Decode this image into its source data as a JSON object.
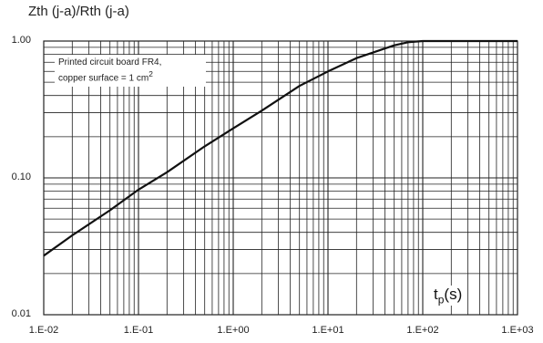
{
  "chart_data": {
    "type": "line",
    "title": "Zth (j-a)/Rth (j-a)",
    "annotation": {
      "line1": "Printed circuit board FR4,",
      "line2_text": "copper surface = 1 cm",
      "line2_sup": "2"
    },
    "x_label": {
      "main": "t",
      "sub": "p",
      "unit": "(s)"
    },
    "x_scale": "log",
    "y_scale": "log",
    "xlim": [
      0.01,
      1000
    ],
    "ylim": [
      0.01,
      1.0
    ],
    "x_tick_labels": [
      "1.E-02",
      "1.E-01",
      "1.E+00",
      "1.E+01",
      "1.E+02",
      "1.E+03"
    ],
    "y_tick_labels": [
      "0.01",
      "0.10",
      "1.00"
    ],
    "grid": true,
    "series": [
      {
        "x": [
          0.01,
          0.02,
          0.05,
          0.1,
          0.2,
          0.5,
          1,
          2,
          5,
          10,
          20,
          50,
          70,
          100,
          1000
        ],
        "y": [
          0.027,
          0.038,
          0.058,
          0.082,
          0.11,
          0.17,
          0.23,
          0.31,
          0.47,
          0.6,
          0.75,
          0.93,
          0.98,
          1.0,
          1.0
        ],
        "color": "#111111"
      }
    ]
  }
}
